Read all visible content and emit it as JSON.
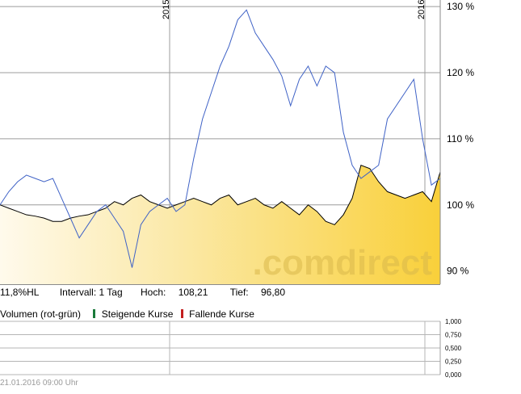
{
  "chart_data": [
    {
      "type": "area",
      "x_tick_labels": [
        "2015",
        "2016"
      ],
      "y_tick_labels": [
        "130 %",
        "120 %",
        "110 %",
        "100 %",
        "90 %"
      ],
      "ylim": [
        88,
        131
      ],
      "grid": true,
      "watermark": ".comdirect",
      "series": [
        {
          "style": "line",
          "color": "#3f62c6",
          "x": [
            0,
            0.02,
            0.04,
            0.06,
            0.08,
            0.1,
            0.12,
            0.14,
            0.16,
            0.18,
            0.2,
            0.22,
            0.24,
            0.26,
            0.28,
            0.3,
            0.32,
            0.34,
            0.36,
            0.38,
            0.4,
            0.42,
            0.44,
            0.46,
            0.48,
            0.5,
            0.52,
            0.54,
            0.56,
            0.58,
            0.6,
            0.62,
            0.64,
            0.66,
            0.68,
            0.7,
            0.72,
            0.74,
            0.76,
            0.78,
            0.8,
            0.82,
            0.84,
            0.86,
            0.88,
            0.9,
            0.92,
            0.94,
            0.96,
            0.98,
            1.0
          ],
          "values": [
            100,
            102,
            103.5,
            104.5,
            104,
            103.5,
            104,
            101,
            98,
            95,
            97,
            99,
            100,
            98,
            96,
            90.5,
            97,
            99,
            100,
            101,
            99,
            100,
            107,
            113,
            117,
            121,
            124,
            128,
            129.5,
            126,
            124,
            122,
            119.5,
            115,
            119,
            121,
            118,
            121,
            120,
            111,
            106,
            104,
            105,
            106,
            113,
            115,
            117,
            119,
            110,
            103,
            104
          ]
        },
        {
          "style": "area",
          "color": "#000000",
          "fill": "#f9d24a",
          "x": [
            0,
            0.02,
            0.04,
            0.06,
            0.08,
            0.1,
            0.12,
            0.14,
            0.16,
            0.18,
            0.2,
            0.22,
            0.24,
            0.26,
            0.28,
            0.3,
            0.32,
            0.34,
            0.36,
            0.38,
            0.4,
            0.42,
            0.44,
            0.46,
            0.48,
            0.5,
            0.52,
            0.54,
            0.56,
            0.58,
            0.6,
            0.62,
            0.64,
            0.66,
            0.68,
            0.7,
            0.72,
            0.74,
            0.76,
            0.78,
            0.8,
            0.82,
            0.84,
            0.86,
            0.88,
            0.9,
            0.92,
            0.94,
            0.96,
            0.98,
            1.0
          ],
          "values": [
            100,
            99.5,
            99,
            98.5,
            98.3,
            98,
            97.5,
            97.5,
            98,
            98.3,
            98.5,
            99,
            99.5,
            100.5,
            100,
            101,
            101.5,
            100.5,
            100,
            99.5,
            100,
            100.5,
            101,
            100.5,
            100,
            101,
            101.5,
            100,
            100.5,
            101,
            100,
            99.5,
            100.5,
            99.5,
            98.5,
            100,
            99,
            97.5,
            97,
            98.5,
            101,
            106,
            105.5,
            103.5,
            102,
            101.5,
            101,
            101.5,
            102,
            100.5,
            105
          ]
        }
      ]
    },
    {
      "type": "bar",
      "title": "Volumen (rot-grün)",
      "y_tick_labels": [
        "1,000",
        "0,750",
        "0,500",
        "0,250",
        "0,000"
      ],
      "legend": [
        {
          "label": "Steigende Kurse",
          "color": "#1a7a3a"
        },
        {
          "label": "Fallende Kurse",
          "color": "#c31f1f"
        }
      ],
      "grid": true
    }
  ],
  "info": {
    "hl": "11,8%HL",
    "interval": "Intervall: 1 Tag",
    "high_label": "Hoch:",
    "high_value": "108,21",
    "low_label": "Tief:",
    "low_value": "96,80"
  },
  "timestamp": "21.01.2016 09:00 Uhr"
}
